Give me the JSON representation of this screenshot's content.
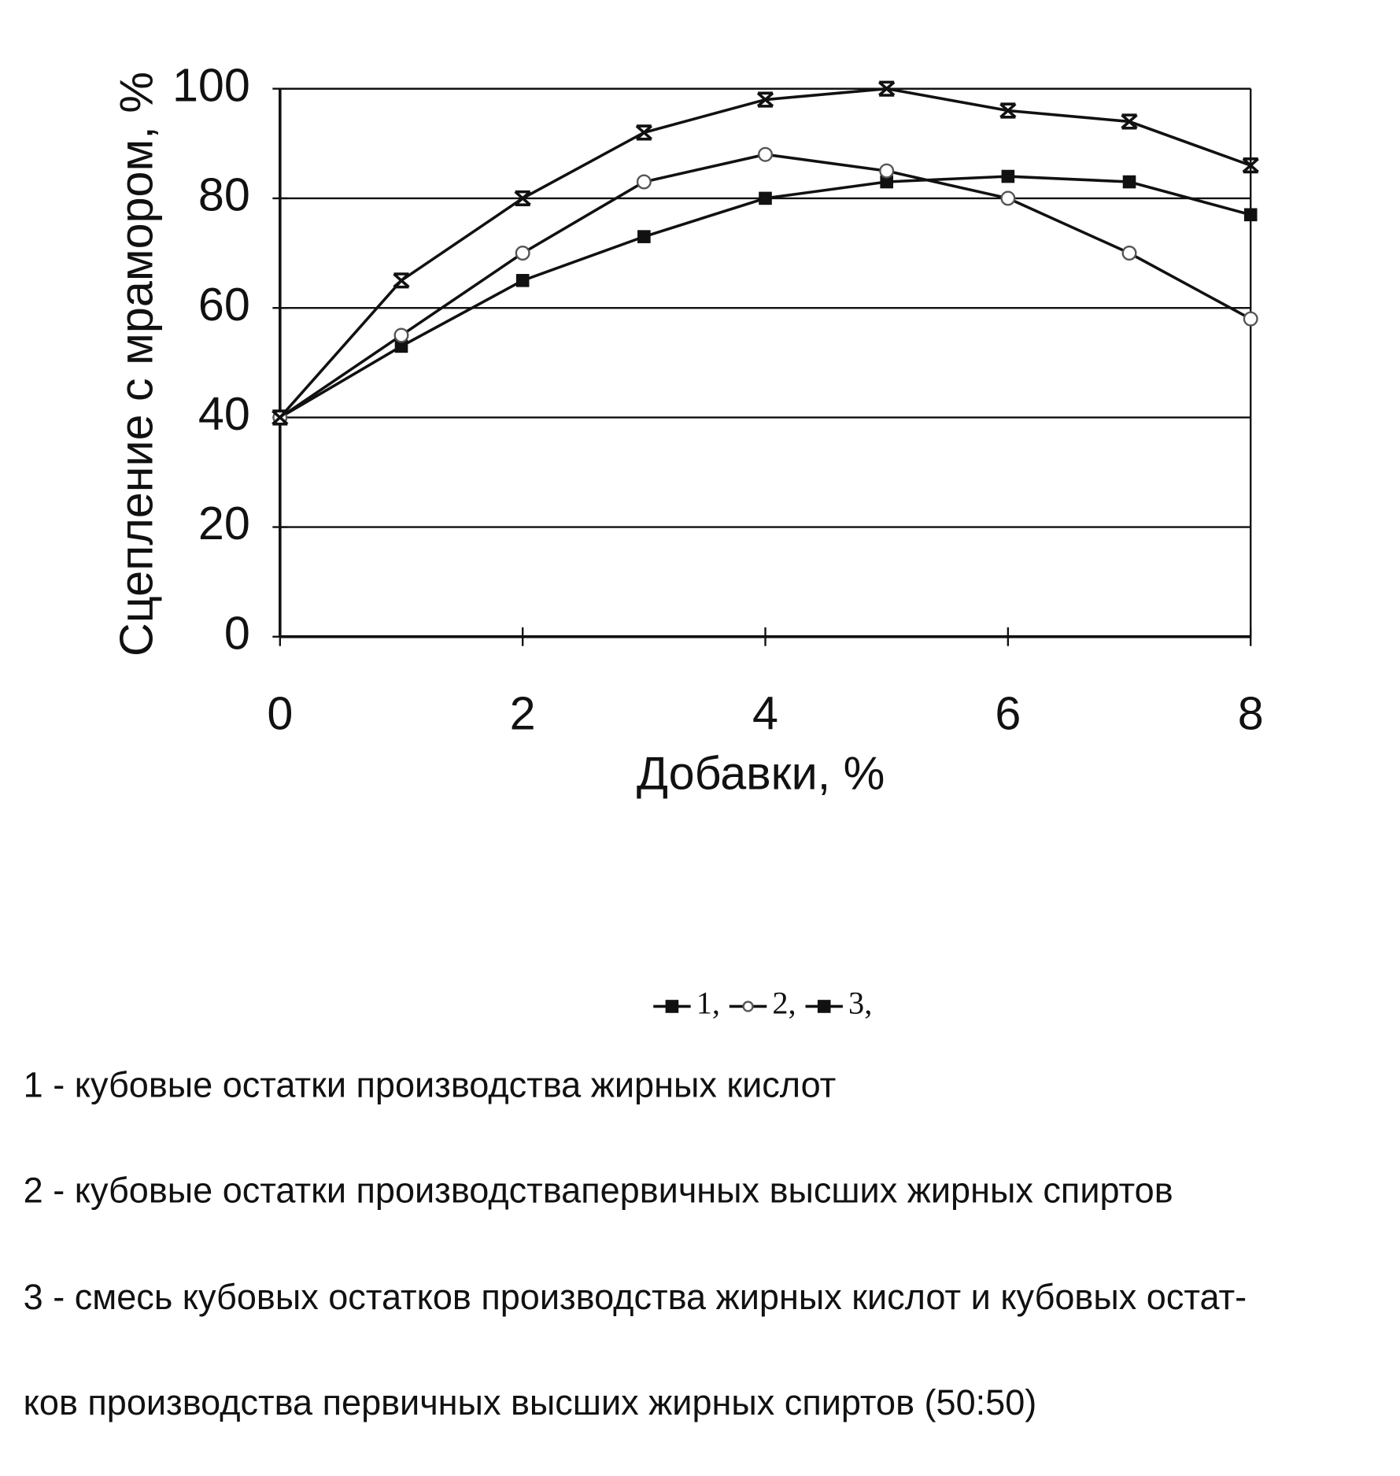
{
  "chart_data": {
    "type": "line",
    "x_label": "Добавки, %",
    "y_label": "Сцепление с мрамором, %",
    "x": [
      0,
      1,
      2,
      3,
      4,
      5,
      6,
      7,
      8
    ],
    "series": [
      {
        "name": "1,",
        "color": "#111111",
        "marker": "square",
        "values": [
          40,
          53,
          65,
          73,
          80,
          83,
          84,
          83,
          77
        ]
      },
      {
        "name": "2,",
        "color": "#111111",
        "marker": "circle",
        "values": [
          40,
          55,
          70,
          83,
          88,
          85,
          80,
          70,
          58
        ]
      },
      {
        "name": "3,",
        "color": "#111111",
        "marker": "cross",
        "values": [
          40,
          65,
          80,
          92,
          98,
          100,
          96,
          94,
          86
        ]
      }
    ],
    "xlim": [
      0,
      8
    ],
    "xticks": [
      0,
      2,
      4,
      6,
      8
    ],
    "ylim": [
      0,
      100
    ],
    "yticks": [
      0,
      20,
      40,
      60,
      80,
      100
    ],
    "grid": true,
    "notes": [
      "1 -  кубовые остатки производства жирных кислот",
      "2 - кубовые остатки производствапервичных высших жирных спиртов",
      "3 - смесь кубовых остатков производства жирных кислот и кубовых остат-",
      "ков производства первичных высших жирных спиртов (50:50)"
    ]
  }
}
